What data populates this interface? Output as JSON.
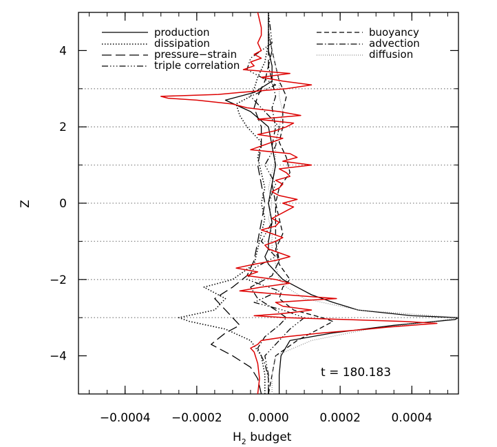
{
  "chart_data": {
    "type": "line",
    "xlabel_main": "H",
    "xlabel_sub": "2",
    "xlabel_rest": " budget",
    "ylabel": "Z",
    "xlim": [
      -0.00053,
      0.00053
    ],
    "ylim": [
      -5,
      5
    ],
    "x_ticks": [
      -0.0004,
      -0.0002,
      0.0,
      0.0002,
      0.0004
    ],
    "x_tick_labels": [
      "−0.0004",
      "−0.0002",
      "0.0000",
      "0.0002",
      "0.0004"
    ],
    "y_ticks": [
      -4,
      -2,
      0,
      2,
      4
    ],
    "y_tick_labels": [
      "−4",
      "−2",
      "0",
      "2",
      "4"
    ],
    "reference_z_lines": [
      -3,
      -2,
      -1,
      0,
      1,
      2,
      3
    ],
    "annotation": "t  =  180.183",
    "legend_left": [
      "production",
      "dissipation",
      "pressure−strain",
      "triple correlation"
    ],
    "legend_right": [
      "buoyancy",
      "advection",
      "diffusion"
    ],
    "highlight_color": "#dd0000",
    "series": [
      {
        "name": "production",
        "style": "solid",
        "z": [
          -5,
          -4.5,
          -4,
          -3.6,
          -3.4,
          -3.2,
          -3.05,
          -3,
          -2.95,
          -2.8,
          -2.6,
          -2.4,
          -2.2,
          -2.0,
          -1.8,
          -1.6,
          -1.4,
          -1.2,
          -1.0,
          -0.5,
          0,
          0.5,
          1.0,
          1.5,
          2.0,
          2.4,
          2.7,
          2.9,
          3.2,
          3.6,
          4.0,
          4.5,
          5
        ],
        "x": [
          3e-05,
          3e-05,
          3.5e-05,
          6e-05,
          0.00018,
          0.00035,
          0.00052,
          0.00053,
          0.0004,
          0.00025,
          0.00018,
          0.00012,
          8e-05,
          4e-05,
          2e-05,
          0.0,
          -1e-05,
          0.0,
          0.0,
          1e-05,
          0.0,
          1e-05,
          2e-05,
          1e-05,
          0.0,
          -5e-05,
          -0.00012,
          -4e-05,
          1e-05,
          1e-05,
          0.0,
          0.0,
          0.0
        ]
      },
      {
        "name": "dissipation",
        "style": "dotted",
        "z": [
          -5,
          -4.5,
          -4,
          -3.6,
          -3.3,
          -3.1,
          -3.0,
          -2.8,
          -2.5,
          -2.2,
          -2.0,
          -1.6,
          -1.2,
          -0.8,
          -0.4,
          0,
          0.4,
          0.8,
          1.2,
          1.6,
          2.0,
          2.3,
          2.6,
          2.8,
          3.0,
          3.3,
          3.7,
          4.2,
          5
        ],
        "x": [
          -1e-05,
          -1e-05,
          -2e-05,
          -5e-05,
          -0.00012,
          -0.00022,
          -0.00025,
          -0.00015,
          -0.00012,
          -0.00018,
          -0.0001,
          -4e-05,
          -3e-05,
          -2e-05,
          -1e-05,
          -2e-05,
          -1e-05,
          -2e-05,
          -3e-05,
          -2e-05,
          -6e-05,
          -8e-05,
          -9e-05,
          -5e-05,
          -4e-05,
          -3e-05,
          -1e-05,
          0.0,
          0.0
        ]
      },
      {
        "name": "pressure−strain",
        "style": "longdash",
        "z": [
          -5,
          -4.6,
          -4.3,
          -4.0,
          -3.7,
          -3.4,
          -3.2,
          -3.0,
          -2.8,
          -2.5,
          -2.2,
          -1.9,
          -1.5,
          -1.0,
          -0.5,
          0,
          0.5,
          1.0,
          1.5,
          2.0,
          2.5,
          2.8,
          3.2,
          3.6,
          4.0,
          4.5,
          5
        ],
        "x": [
          -2e-05,
          -3e-05,
          -5e-05,
          -0.0001,
          -0.00016,
          -0.00012,
          -8e-05,
          -0.0001,
          -0.00012,
          -0.00015,
          -0.0001,
          -6e-05,
          -4e-05,
          -3e-05,
          -2e-05,
          -1e-05,
          -2e-05,
          -3e-05,
          -2e-05,
          -2e-05,
          -4e-05,
          -3e-05,
          -1e-05,
          0.0,
          0.0,
          0.0,
          0.0
        ]
      },
      {
        "name": "triple correlation",
        "style": "dashdotdot",
        "z": [
          -5,
          -4.5,
          -4.0,
          -3.6,
          -3.3,
          -3.0,
          -2.8,
          -2.6,
          -2.3,
          -2.0,
          -1.7,
          -1.4,
          -1.0,
          -0.5,
          0,
          0.5,
          1.0,
          1.5,
          2.0,
          2.5,
          2.8,
          3.1,
          3.5,
          3.8,
          4.2,
          5
        ],
        "x": [
          0.0,
          0.0,
          -1e-05,
          3e-05,
          6e-05,
          0.0001,
          4e-05,
          -4e-05,
          3e-05,
          -6e-05,
          -4e-05,
          2e-05,
          -2e-05,
          1e-05,
          0.0,
          2e-05,
          -1e-05,
          2e-05,
          3e-05,
          -2e-05,
          -5e-05,
          2e-05,
          -6e-05,
          -5e-05,
          1e-05,
          0.0
        ]
      },
      {
        "name": "buoyancy",
        "style": "dashed",
        "z": [
          -5,
          -4.5,
          -4.0,
          -3.6,
          -3.3,
          -3.1,
          -3.0,
          -2.8,
          -2.5,
          -2.2,
          -2.0,
          -1.6,
          -1.2,
          -0.8,
          -0.4,
          0,
          0.4,
          0.8,
          1.2,
          1.6,
          2.0,
          2.4,
          2.8,
          3.2,
          3.6,
          4.0,
          4.5,
          5
        ],
        "x": [
          0.0,
          1e-05,
          2e-05,
          8e-05,
          0.00014,
          0.00018,
          0.00015,
          7e-05,
          3e-05,
          4e-05,
          6e-05,
          3e-05,
          2e-05,
          4e-05,
          3e-05,
          2e-05,
          3e-05,
          6e-05,
          5e-05,
          3e-05,
          4e-05,
          4e-05,
          5e-05,
          3e-05,
          2e-05,
          1e-05,
          0.0,
          0.0
        ]
      },
      {
        "name": "advection",
        "style": "dashdot",
        "z": [
          -5,
          -4.6,
          -4.2,
          -3.8,
          -3.5,
          -3.2,
          -3.0,
          -2.8,
          -2.5,
          -2.2,
          -1.9,
          -1.5,
          -1.0,
          -0.5,
          0,
          0.5,
          1.0,
          1.5,
          2.0,
          2.5,
          2.8,
          3.2,
          3.6,
          4.0,
          4.5,
          5
        ],
        "x": [
          0.0,
          0.0,
          -1e-05,
          -3e-05,
          -1e-05,
          3e-05,
          5e-05,
          2e-05,
          -3e-05,
          -5e-05,
          1e-05,
          3e-05,
          2e-05,
          2e-05,
          2e-05,
          1e-05,
          2e-05,
          1e-05,
          2e-05,
          1e-05,
          2e-05,
          1e-05,
          0.0,
          1e-05,
          0.0,
          0.0
        ]
      },
      {
        "name": "diffusion",
        "style": "finedot",
        "z": [
          -5,
          -4.5,
          -4.0,
          -3.6,
          -3.3,
          -3.1,
          -3.0,
          -2.8,
          -2.5,
          -2.2,
          -2.0,
          -1.6,
          -1.2,
          -0.8,
          -0.4,
          0,
          0.4,
          0.8,
          1.2,
          1.6,
          2.0,
          2.4,
          2.8,
          3.2,
          3.6,
          4.0,
          4.5,
          5
        ],
        "x": [
          1e-05,
          1e-05,
          2e-05,
          0.00012,
          0.00028,
          0.00046,
          0.00053,
          0.00025,
          0.0001,
          5e-05,
          3e-05,
          2e-05,
          1e-05,
          1e-05,
          0.0,
          1e-05,
          0.0,
          1e-05,
          2e-05,
          2e-05,
          3e-05,
          4e-05,
          3e-05,
          3e-05,
          2e-05,
          1e-05,
          0.0,
          0.0
        ]
      },
      {
        "name": "",
        "style": "red",
        "z": [
          -5,
          -4.6,
          -4.2,
          -3.9,
          -3.8,
          -3.7,
          -3.6,
          -3.5,
          -3.4,
          -3.3,
          -3.25,
          -3.2,
          -3.15,
          -3.1,
          -3.05,
          -3.0,
          -2.95,
          -2.9,
          -2.85,
          -2.8,
          -2.7,
          -2.6,
          -2.55,
          -2.5,
          -2.45,
          -2.4,
          -2.3,
          -2.2,
          -2.1,
          -2.0,
          -1.9,
          -1.8,
          -1.7,
          -1.6,
          -1.5,
          -1.4,
          -1.3,
          -1.2,
          -1.1,
          -1.0,
          -0.9,
          -0.8,
          -0.7,
          -0.6,
          -0.5,
          -0.4,
          -0.3,
          -0.2,
          -0.1,
          0.0,
          0.1,
          0.2,
          0.3,
          0.4,
          0.5,
          0.6,
          0.7,
          0.8,
          0.9,
          1.0,
          1.1,
          1.2,
          1.3,
          1.4,
          1.5,
          1.6,
          1.7,
          1.8,
          1.9,
          2.0,
          2.1,
          2.2,
          2.3,
          2.4,
          2.5,
          2.6,
          2.7,
          2.75,
          2.8,
          2.85,
          2.9,
          3.0,
          3.1,
          3.2,
          3.3,
          3.4,
          3.5,
          3.6,
          3.7,
          3.8,
          3.9,
          4.0,
          4.2,
          4.4,
          4.6,
          4.8,
          5
        ],
        "x": [
          -3e-05,
          -2.5e-05,
          -3e-05,
          -4e-05,
          -5e-05,
          -3e-05,
          -2e-05,
          5e-05,
          0.00015,
          0.00028,
          0.00033,
          0.0004,
          0.00047,
          0.00038,
          0.00022,
          5e-05,
          -4e-05,
          3e-05,
          8e-05,
          0.00012,
          4e-05,
          2e-05,
          0.0001,
          0.00019,
          0.00012,
          5e-05,
          -8e-05,
          -2e-05,
          6e-05,
          2e-05,
          -6e-05,
          -3e-05,
          -9e-05,
          -4e-05,
          2e-05,
          6e-05,
          3e-05,
          0.0,
          -1e-05,
          2e-05,
          4e-05,
          1e-05,
          -2e-05,
          2e-05,
          3e-05,
          1e-05,
          3e-05,
          5e-05,
          7e-05,
          4e-05,
          8e-05,
          3e-05,
          1e-05,
          3e-05,
          4e-05,
          2e-05,
          6e-05,
          5e-05,
          3e-05,
          0.00012,
          4e-05,
          8e-05,
          6e-05,
          -5e-05,
          -2e-05,
          1e-05,
          4e-05,
          -3e-05,
          2e-05,
          5e-05,
          7e-05,
          -3e-05,
          9e-05,
          3e-05,
          -6e-05,
          -0.0001,
          -0.0002,
          -0.00028,
          -0.0003,
          -0.00014,
          -8e-05,
          5e-05,
          0.00012,
          4e-05,
          -2e-05,
          6e-05,
          -7e-05,
          -4e-05,
          -5e-05,
          -2e-05,
          -4e-05,
          -2e-05,
          -3e-05,
          -2e-05,
          -2e-05,
          -2.5e-05,
          -3e-05
        ]
      }
    ]
  }
}
